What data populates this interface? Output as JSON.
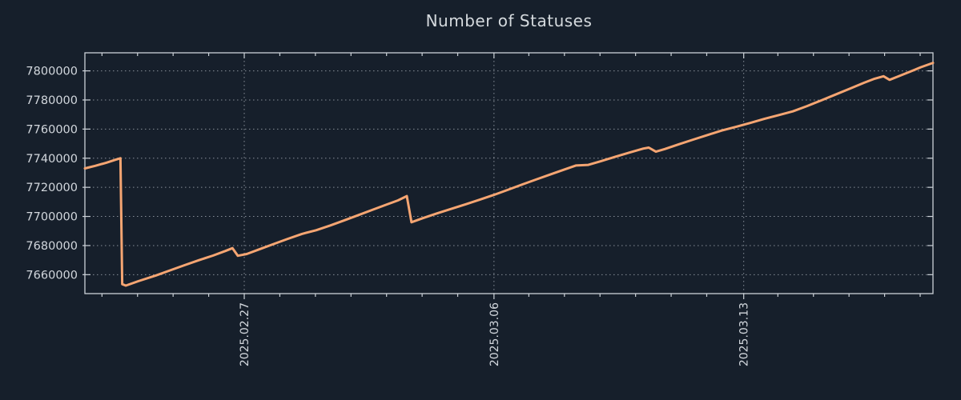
{
  "title": "Number of Statuses",
  "colors": {
    "background": "#161f2b",
    "line": "#f5a572",
    "grid": "#b6bdc6",
    "border": "#ccd2d8",
    "text": "#d2d7dd"
  },
  "chart_data": {
    "type": "line",
    "title": "Number of Statuses",
    "legend": false,
    "grid": true,
    "x_axis": {
      "tick_labels": [
        "2025.02.27",
        "2025.03.06",
        "2025.03.13"
      ],
      "tick_days": [
        4.48,
        11.5,
        18.52
      ],
      "range_days": [
        0,
        23.84
      ],
      "minor_tick_first_day": 0.48,
      "minor_tick_interval_days": 1
    },
    "y_axis": {
      "ticks": [
        7660000,
        7680000,
        7700000,
        7720000,
        7740000,
        7760000,
        7780000,
        7800000
      ],
      "range": [
        7647000,
        7812400
      ]
    },
    "series": [
      {
        "name": "number-of-statuses",
        "color": "#f5a572",
        "points": [
          [
            0.0,
            7733000
          ],
          [
            0.3,
            7734800
          ],
          [
            0.6,
            7736900
          ],
          [
            0.85,
            7738900
          ],
          [
            1.0,
            7740000
          ],
          [
            1.05,
            7653500
          ],
          [
            1.15,
            7652500
          ],
          [
            1.5,
            7655500
          ],
          [
            2.0,
            7659500
          ],
          [
            2.4,
            7663000
          ],
          [
            2.8,
            7666500
          ],
          [
            3.2,
            7669900
          ],
          [
            3.6,
            7673100
          ],
          [
            3.95,
            7676300
          ],
          [
            4.15,
            7678200
          ],
          [
            4.3,
            7673000
          ],
          [
            4.55,
            7674200
          ],
          [
            4.9,
            7677400
          ],
          [
            5.3,
            7681000
          ],
          [
            5.7,
            7684600
          ],
          [
            6.1,
            7688000
          ],
          [
            6.5,
            7690500
          ],
          [
            6.9,
            7693800
          ],
          [
            7.3,
            7697400
          ],
          [
            7.7,
            7701000
          ],
          [
            8.1,
            7704700
          ],
          [
            8.5,
            7708300
          ],
          [
            8.8,
            7711000
          ],
          [
            9.05,
            7714000
          ],
          [
            9.18,
            7696000
          ],
          [
            9.5,
            7698800
          ],
          [
            9.9,
            7702100
          ],
          [
            10.3,
            7705200
          ],
          [
            10.7,
            7708300
          ],
          [
            11.1,
            7711500
          ],
          [
            11.5,
            7714800
          ],
          [
            11.9,
            7718400
          ],
          [
            12.3,
            7722000
          ],
          [
            12.7,
            7725500
          ],
          [
            13.1,
            7729000
          ],
          [
            13.5,
            7732400
          ],
          [
            13.8,
            7735000
          ],
          [
            14.15,
            7735400
          ],
          [
            14.5,
            7737900
          ],
          [
            14.9,
            7740900
          ],
          [
            15.3,
            7743800
          ],
          [
            15.7,
            7746600
          ],
          [
            15.85,
            7747300
          ],
          [
            16.05,
            7744500
          ],
          [
            16.3,
            7746300
          ],
          [
            16.7,
            7749600
          ],
          [
            17.1,
            7752800
          ],
          [
            17.5,
            7755900
          ],
          [
            17.9,
            7759000
          ],
          [
            18.3,
            7761500
          ],
          [
            18.7,
            7764200
          ],
          [
            19.1,
            7767000
          ],
          [
            19.5,
            7769600
          ],
          [
            19.9,
            7772200
          ],
          [
            20.3,
            7775800
          ],
          [
            20.7,
            7779700
          ],
          [
            21.1,
            7783700
          ],
          [
            21.5,
            7787700
          ],
          [
            21.9,
            7791800
          ],
          [
            22.2,
            7794600
          ],
          [
            22.45,
            7796300
          ],
          [
            22.62,
            7793800
          ],
          [
            22.9,
            7796500
          ],
          [
            23.2,
            7799500
          ],
          [
            23.5,
            7802500
          ],
          [
            23.84,
            7805500
          ]
        ]
      }
    ]
  }
}
